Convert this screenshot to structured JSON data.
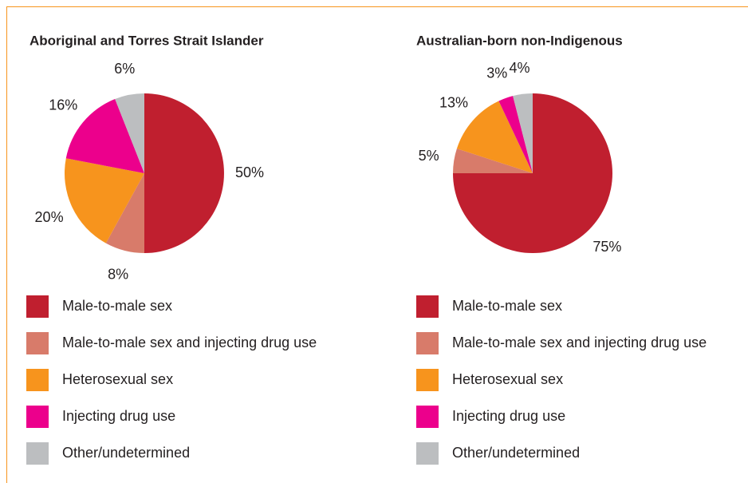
{
  "chart_data": [
    {
      "type": "pie",
      "title": "Aboriginal and Torres Strait Islander",
      "categories": [
        "Male-to-male sex",
        "Male-to-male sex and injecting drug use",
        "Heterosexual sex",
        "Injecting drug use",
        "Other/undetermined"
      ],
      "values": [
        50,
        8,
        20,
        16,
        6
      ],
      "value_labels": [
        "50%",
        "8%",
        "20%",
        "16%",
        "6%"
      ],
      "colors": [
        "#c01f2f",
        "#d87b6a",
        "#f7941d",
        "#ec008c",
        "#bcbec0"
      ]
    },
    {
      "type": "pie",
      "title": "Australian-born non-Indigenous",
      "categories": [
        "Male-to-male sex",
        "Male-to-male sex and injecting drug use",
        "Heterosexual sex",
        "Injecting drug use",
        "Other/undetermined"
      ],
      "values": [
        75,
        5,
        13,
        3,
        4
      ],
      "value_labels": [
        "75%",
        "5%",
        "13%",
        "3%",
        "4%"
      ],
      "colors": [
        "#c01f2f",
        "#d87b6a",
        "#f7941d",
        "#ec008c",
        "#bcbec0"
      ]
    }
  ]
}
